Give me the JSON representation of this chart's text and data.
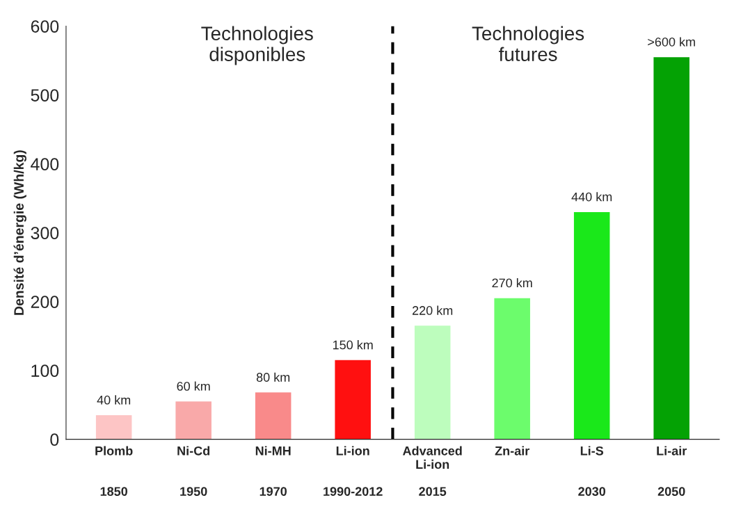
{
  "chart_data": {
    "type": "bar",
    "ylabel": "Densité d’énergie (Wh/kg)",
    "categories": [
      "Plomb\n\n\n1850",
      "Ni-Cd\n\n\n1950",
      "Ni-MH\n\n\n1970",
      "Li-ion\n\n\n1990-2012",
      "Advanced\nLi-ion\n\n2015",
      "Zn-air",
      "Li-S\n\n\n2030",
      "Li-air\n\n\n2050"
    ],
    "values": [
      35,
      55,
      68,
      115,
      165,
      205,
      330,
      555
    ],
    "colors": [
      "#fdc5c5",
      "#f9a9a9",
      "#f98a8a",
      "#ff1010",
      "#bdfdbd",
      "#6cfc6c",
      "#1ae81a",
      "#04a204"
    ],
    "ylim": [
      0,
      600
    ],
    "yticks": [
      0,
      100,
      200,
      300,
      400,
      500,
      600
    ],
    "grid": false,
    "annotations": [
      "Technologies\ndisponibles",
      "Technologies\nfutures",
      "40 km",
      "60 km",
      "80 km",
      "150 km",
      "220 km",
      "270 km",
      "440 km",
      ">600 km"
    ]
  }
}
